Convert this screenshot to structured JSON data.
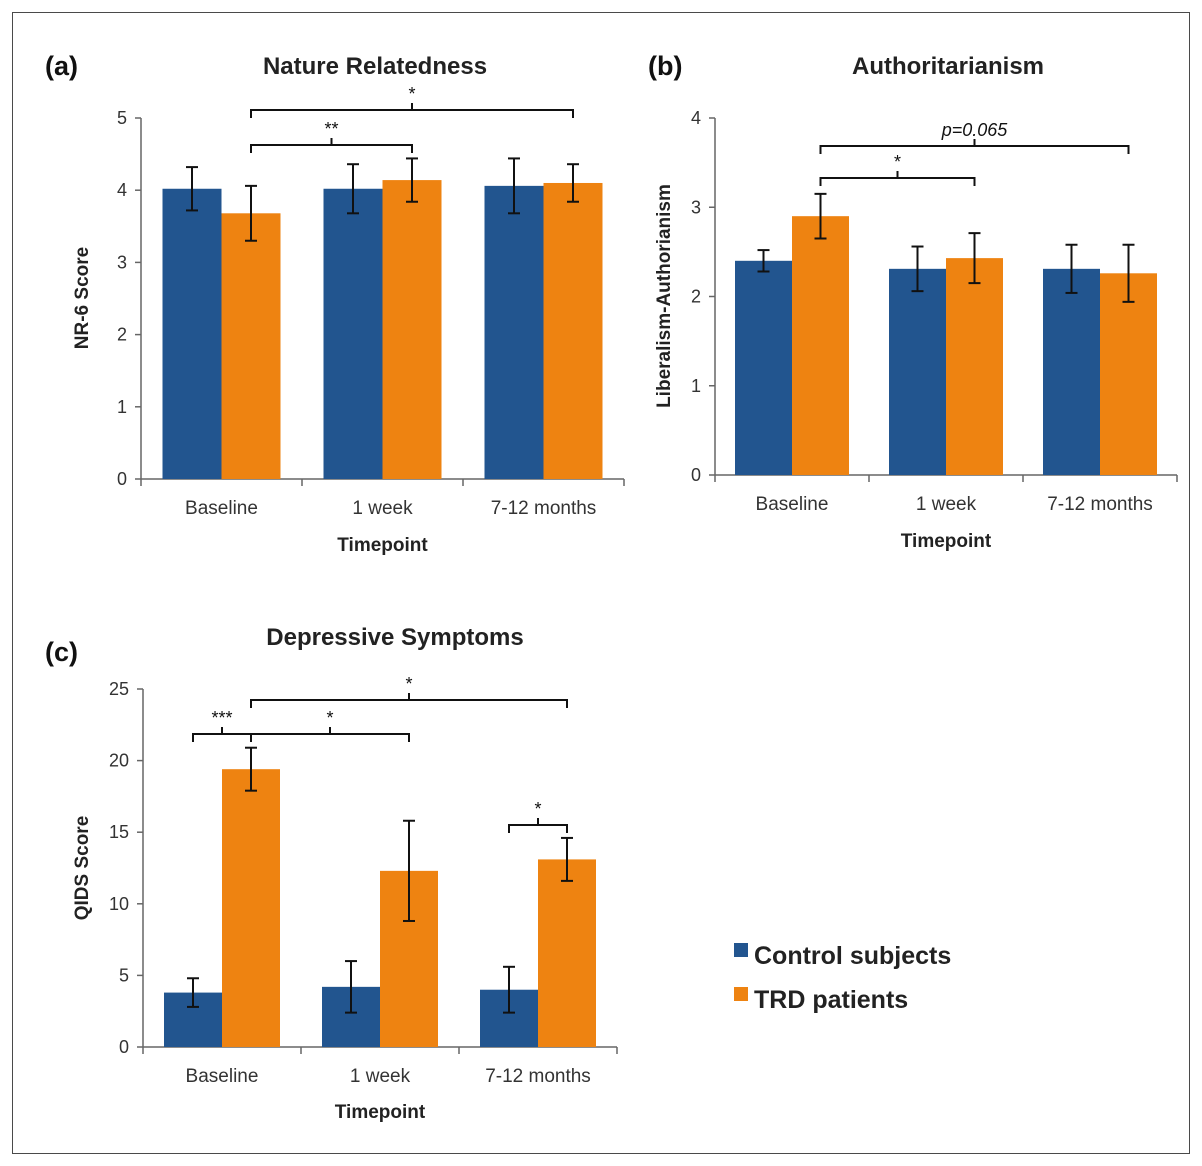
{
  "legend": {
    "items": [
      {
        "label": "Control subjects",
        "color": "#22558f"
      },
      {
        "label": "TRD patients",
        "color": "#ee8311"
      }
    ]
  },
  "chart_data": [
    {
      "panel_label": "(a)",
      "type": "bar",
      "title": "Nature Relatedness",
      "xlabel": "Timepoint",
      "ylabel": "NR-6 Score",
      "ylim": [
        0,
        5
      ],
      "yticks": [
        "0",
        "1",
        "2",
        "3",
        "4",
        "5"
      ],
      "categories": [
        "Baseline",
        "1 week",
        "7-12 months"
      ],
      "series": [
        {
          "name": "Control subjects",
          "color": "#22558f",
          "values": [
            4.02,
            4.02,
            4.06
          ],
          "errors": [
            0.3,
            0.34,
            0.38
          ]
        },
        {
          "name": "TRD patients",
          "color": "#ee8311",
          "values": [
            3.68,
            4.14,
            4.1
          ],
          "errors": [
            0.38,
            0.3,
            0.26
          ]
        }
      ],
      "significance": [
        {
          "label": "*",
          "from_category": 0,
          "from_series": 1,
          "to_category": 2,
          "to_series": 1,
          "level": 0.5
        },
        {
          "label": "**",
          "from_category": 0,
          "from_series": 1,
          "to_category": 1,
          "to_series": 1,
          "level": 0.0
        }
      ]
    },
    {
      "panel_label": "(b)",
      "type": "bar",
      "title": "Authoritarianism",
      "xlabel": "Timepoint",
      "ylabel": "Liberalism-Authorianism",
      "ylim": [
        0,
        4
      ],
      "yticks": [
        "0",
        "1",
        "2",
        "3",
        "4"
      ],
      "categories": [
        "Baseline",
        "1 week",
        "7-12 months"
      ],
      "series": [
        {
          "name": "Control subjects",
          "color": "#22558f",
          "values": [
            2.4,
            2.31,
            2.31
          ],
          "errors": [
            0.12,
            0.25,
            0.27
          ]
        },
        {
          "name": "TRD patients",
          "color": "#ee8311",
          "values": [
            2.9,
            2.43,
            2.26
          ],
          "errors": [
            0.25,
            0.28,
            0.32
          ]
        }
      ],
      "significance": [
        {
          "label": "p=0.065",
          "from_category": 0,
          "from_series": 1,
          "to_category": 2,
          "to_series": 1,
          "level": 0.5
        },
        {
          "label": "*",
          "from_category": 0,
          "from_series": 1,
          "to_category": 1,
          "to_series": 1,
          "level": 0.0
        }
      ]
    },
    {
      "panel_label": "(c)",
      "type": "bar",
      "title": "Depressive Symptoms",
      "xlabel": "Timepoint",
      "ylabel": "QIDS Score",
      "ylim": [
        0,
        25
      ],
      "yticks": [
        "0",
        "5",
        "10",
        "15",
        "20",
        "25"
      ],
      "categories": [
        "Baseline",
        "1 week",
        "7-12 months"
      ],
      "series": [
        {
          "name": "Control subjects",
          "color": "#22558f",
          "values": [
            3.8,
            4.2,
            4.0
          ],
          "errors": [
            1.0,
            1.8,
            1.6
          ]
        },
        {
          "name": "TRD patients",
          "color": "#ee8311",
          "values": [
            19.4,
            12.3,
            13.1
          ],
          "errors": [
            1.5,
            3.5,
            1.5
          ]
        }
      ],
      "significance": [
        {
          "label": "*",
          "from_category": 0,
          "from_series": 1,
          "to_category": 2,
          "to_series": 1,
          "level": 0.93
        },
        {
          "label": "*",
          "from_category": 0,
          "from_series": 1,
          "to_category": 1,
          "to_series": 1,
          "level": 0.79
        },
        {
          "label": "***",
          "from_category": 0,
          "from_series": 0,
          "to_category": 0,
          "to_series": 1,
          "level": 0.79
        },
        {
          "label": "*",
          "from_category": 2,
          "from_series": 0,
          "to_category": 2,
          "to_series": 1,
          "level": 0.45
        }
      ]
    }
  ]
}
